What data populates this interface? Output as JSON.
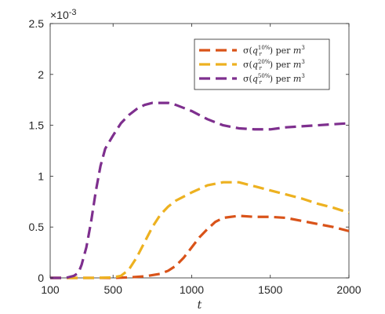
{
  "chart_data": {
    "type": "line",
    "title": "",
    "xlabel": "t",
    "ylabel": "",
    "xlim": [
      100,
      2000
    ],
    "ylim": [
      0,
      2.5
    ],
    "y_multiplier": "×10-3",
    "xticks": [
      100,
      500,
      1000,
      1500,
      2000
    ],
    "yticks": [
      0,
      0.5,
      1,
      1.5,
      2,
      2.5
    ],
    "xtick_labels": [
      "100",
      "500",
      "1000",
      "1500",
      "2000"
    ],
    "ytick_labels": [
      "0",
      "0.5",
      "1",
      "1.5",
      "2",
      "2.5"
    ],
    "grid": false,
    "legend_position": "top-right",
    "line_style": "dashed",
    "series": [
      {
        "name": "σ(q_r^{10%}) per m^3",
        "legend": {
          "sigma": "σ(",
          "q": "q",
          "sub": "r",
          "sup": "10%",
          "rest": ") per ",
          "m": "m",
          "msup": "3"
        },
        "color": "#D95319",
        "x": [
          100,
          200,
          300,
          400,
          500,
          600,
          700,
          800,
          850,
          900,
          950,
          1000,
          1050,
          1100,
          1150,
          1200,
          1300,
          1400,
          1500,
          1600,
          1700,
          1800,
          1900,
          2000
        ],
        "y": [
          0,
          0,
          0,
          0,
          0,
          0.005,
          0.015,
          0.04,
          0.07,
          0.12,
          0.2,
          0.3,
          0.4,
          0.48,
          0.55,
          0.59,
          0.61,
          0.6,
          0.6,
          0.59,
          0.56,
          0.53,
          0.5,
          0.46
        ]
      },
      {
        "name": "σ(q_r^{20%}) per m^3",
        "legend": {
          "sigma": "σ(",
          "q": "q",
          "sub": "r",
          "sup": "20%",
          "rest": ") per ",
          "m": "m",
          "msup": "3"
        },
        "color": "#EDB120",
        "x": [
          100,
          200,
          300,
          400,
          500,
          550,
          600,
          650,
          700,
          750,
          800,
          850,
          900,
          1000,
          1100,
          1200,
          1300,
          1400,
          1500,
          1600,
          1700,
          1800,
          1900,
          2000
        ],
        "y": [
          0,
          0,
          0,
          0,
          0.005,
          0.02,
          0.08,
          0.2,
          0.35,
          0.5,
          0.62,
          0.7,
          0.76,
          0.84,
          0.91,
          0.94,
          0.94,
          0.9,
          0.86,
          0.82,
          0.78,
          0.73,
          0.69,
          0.64
        ]
      },
      {
        "name": "σ(q_r^{50%}) per m^3",
        "legend": {
          "sigma": "σ(",
          "q": "q",
          "sub": "r",
          "sup": "50%",
          "rest": ") per ",
          "m": "m",
          "msup": "3"
        },
        "color": "#7E2F8E",
        "x": [
          100,
          200,
          250,
          280,
          300,
          330,
          360,
          390,
          420,
          450,
          500,
          550,
          600,
          650,
          700,
          750,
          800,
          850,
          900,
          1000,
          1100,
          1200,
          1300,
          1400,
          1500,
          1600,
          1700,
          1800,
          1900,
          2000
        ],
        "y": [
          0,
          0,
          0.02,
          0.05,
          0.13,
          0.3,
          0.55,
          0.85,
          1.1,
          1.27,
          1.4,
          1.52,
          1.6,
          1.66,
          1.7,
          1.72,
          1.72,
          1.72,
          1.7,
          1.64,
          1.56,
          1.5,
          1.47,
          1.46,
          1.46,
          1.48,
          1.49,
          1.5,
          1.51,
          1.52
        ]
      }
    ]
  }
}
